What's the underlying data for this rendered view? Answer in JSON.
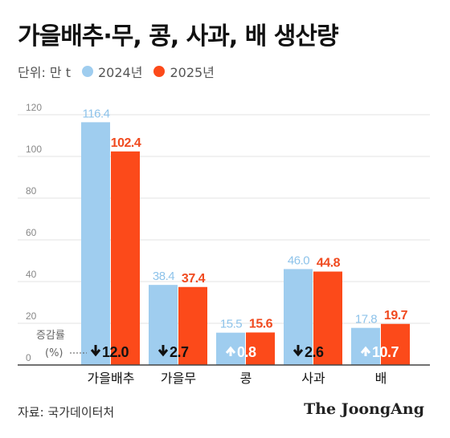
{
  "title": "가을배추·무, 콩, 사과, 배 생산량",
  "legend": {
    "unit": "단위: 만 t",
    "items": [
      {
        "label": "2024년",
        "color": "#9fcdef"
      },
      {
        "label": "2025년",
        "color": "#fc4a1a"
      }
    ]
  },
  "source": "자료: 국가데이터처",
  "brand": "The JoongAng",
  "chart_data": {
    "type": "bar",
    "categories": [
      "가을배추",
      "가을무",
      "콩",
      "사과",
      "배"
    ],
    "series": [
      {
        "name": "2024년",
        "values": [
          116.4,
          38.4,
          15.5,
          46.0,
          17.8
        ],
        "labels": [
          "116.4",
          "38.4",
          "15.5",
          "46.0",
          "17.8"
        ],
        "color": "#9fcdef",
        "label_color": "#8ec3ea"
      },
      {
        "name": "2025년",
        "values": [
          102.4,
          37.4,
          15.6,
          44.8,
          19.7
        ],
        "labels": [
          "102.4",
          "37.4",
          "15.6",
          "44.8",
          "19.7"
        ],
        "color": "#fc4a1a",
        "label_color": "#f04a1f"
      }
    ],
    "yticks": [
      0,
      20,
      40,
      60,
      80,
      100,
      120
    ],
    "ylim": [
      0,
      130
    ],
    "grid": true,
    "change": {
      "label_line1": "증감률",
      "label_line2": "(%)",
      "items": [
        {
          "direction": "down",
          "value": "12.0"
        },
        {
          "direction": "down",
          "value": "2.7"
        },
        {
          "direction": "up",
          "value": "0.8"
        },
        {
          "direction": "down",
          "value": "2.6"
        },
        {
          "direction": "up",
          "value": "10.7"
        }
      ]
    }
  }
}
